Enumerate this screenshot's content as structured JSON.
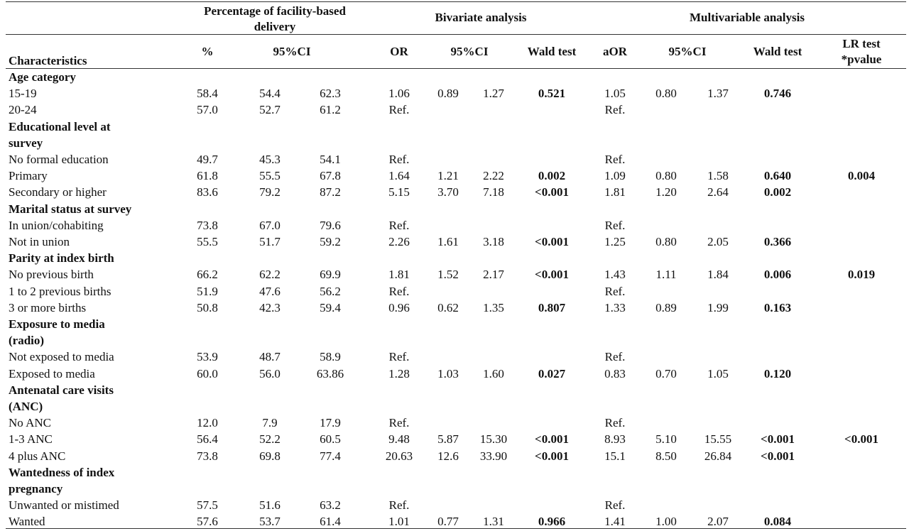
{
  "header": {
    "group1_line1": "Percentage of facility-based",
    "group1_line2": "delivery",
    "group2": "Bivariate analysis",
    "group3": "Multivariable analysis",
    "characteristics": "Characteristics",
    "pct": "%",
    "ci1": "95%CI",
    "or": "OR",
    "ci2": "95%CI",
    "wald1": "Wald test",
    "aor": "aOR",
    "ci3": "95%CI",
    "wald2": "Wald test",
    "lr_line1": "LR test",
    "lr_line2": "*pvalue"
  },
  "rows": [
    {
      "type": "cat",
      "label": [
        "Age category"
      ]
    },
    {
      "type": "data",
      "label": "15-19",
      "pct": "58.4",
      "ci_lo": "54.4",
      "ci_hi": "62.3",
      "or": "1.06",
      "or_lo": "0.89",
      "or_hi": "1.27",
      "wald": "0.521",
      "aor": "1.05",
      "aor_lo": "0.80",
      "aor_hi": "1.37",
      "wald2": "0.746",
      "lr": ""
    },
    {
      "type": "data",
      "label": "20-24",
      "pct": "57.0",
      "ci_lo": "52.7",
      "ci_hi": "61.2",
      "or": "Ref.",
      "or_lo": "",
      "or_hi": "",
      "wald": "",
      "aor": "Ref.",
      "aor_lo": "",
      "aor_hi": "",
      "wald2": "",
      "lr": ""
    },
    {
      "type": "cat",
      "label": [
        "Educational level at",
        "survey"
      ]
    },
    {
      "type": "data",
      "label": "No formal education",
      "pct": "49.7",
      "ci_lo": "45.3",
      "ci_hi": "54.1",
      "or": "Ref.",
      "or_lo": "",
      "or_hi": "",
      "wald": "",
      "aor": "Ref.",
      "aor_lo": "",
      "aor_hi": "",
      "wald2": "",
      "lr": ""
    },
    {
      "type": "data",
      "label": "Primary",
      "pct": "61.8",
      "ci_lo": "55.5",
      "ci_hi": "67.8",
      "or": "1.64",
      "or_lo": "1.21",
      "or_hi": "2.22",
      "wald": "0.002",
      "aor": "1.09",
      "aor_lo": "0.80",
      "aor_hi": "1.58",
      "wald2": "0.640",
      "lr": "0.004"
    },
    {
      "type": "data",
      "label": "Secondary or higher",
      "pct": "83.6",
      "ci_lo": "79.2",
      "ci_hi": "87.2",
      "or": "5.15",
      "or_lo": "3.70",
      "or_hi": "7.18",
      "wald": "<0.001",
      "aor": "1.81",
      "aor_lo": "1.20",
      "aor_hi": "2.64",
      "wald2": "0.002",
      "lr": ""
    },
    {
      "type": "cat",
      "label": [
        "Marital status at survey"
      ]
    },
    {
      "type": "data",
      "label": "In union/cohabiting",
      "pct": "73.8",
      "ci_lo": "67.0",
      "ci_hi": "79.6",
      "or": "Ref.",
      "or_lo": "",
      "or_hi": "",
      "wald": "",
      "aor": "Ref.",
      "aor_lo": "",
      "aor_hi": "",
      "wald2": "",
      "lr": ""
    },
    {
      "type": "data",
      "label": "Not in union",
      "pct": "55.5",
      "ci_lo": "51.7",
      "ci_hi": "59.2",
      "or": "2.26",
      "or_lo": "1.61",
      "or_hi": "3.18",
      "wald": "<0.001",
      "aor": "1.25",
      "aor_lo": "0.80",
      "aor_hi": "2.05",
      "wald2": "0.366",
      "lr": ""
    },
    {
      "type": "cat",
      "label": [
        "Parity at index birth"
      ]
    },
    {
      "type": "data",
      "label": "No previous birth",
      "pct": "66.2",
      "ci_lo": "62.2",
      "ci_hi": "69.9",
      "or": "1.81",
      "or_lo": "1.52",
      "or_hi": "2.17",
      "wald": "<0.001",
      "aor": "1.43",
      "aor_lo": "1.11",
      "aor_hi": "1.84",
      "wald2": "0.006",
      "lr": "0.019"
    },
    {
      "type": "data",
      "label": "1 to 2 previous births",
      "pct": "51.9",
      "ci_lo": "47.6",
      "ci_hi": "56.2",
      "or": "Ref.",
      "or_lo": "",
      "or_hi": "",
      "wald": "",
      "aor": "Ref.",
      "aor_lo": "",
      "aor_hi": "",
      "wald2": "",
      "lr": ""
    },
    {
      "type": "data",
      "label": "3 or more births",
      "pct": "50.8",
      "ci_lo": "42.3",
      "ci_hi": "59.4",
      "or": "0.96",
      "or_lo": "0.62",
      "or_hi": "1.35",
      "wald": "0.807",
      "aor": "1.33",
      "aor_lo": "0.89",
      "aor_hi": "1.99",
      "wald2": "0.163",
      "lr": ""
    },
    {
      "type": "cat",
      "label": [
        "Exposure to media",
        "(radio)"
      ]
    },
    {
      "type": "data",
      "label": "Not exposed to media",
      "pct": "53.9",
      "ci_lo": "48.7",
      "ci_hi": "58.9",
      "or": "Ref.",
      "or_lo": "",
      "or_hi": "",
      "wald": "",
      "aor": "Ref.",
      "aor_lo": "",
      "aor_hi": "",
      "wald2": "",
      "lr": ""
    },
    {
      "type": "data",
      "label": "Exposed to media",
      "pct": "60.0",
      "ci_lo": "56.0",
      "ci_hi": "63.86",
      "or": "1.28",
      "or_lo": "1.03",
      "or_hi": "1.60",
      "wald": "0.027",
      "aor": "0.83",
      "aor_lo": "0.70",
      "aor_hi": "1.05",
      "wald2": "0.120",
      "lr": ""
    },
    {
      "type": "cat",
      "label": [
        "Antenatal care visits",
        "(ANC)"
      ]
    },
    {
      "type": "data",
      "label": "No ANC",
      "pct": "12.0",
      "ci_lo": "7.9",
      "ci_hi": "17.9",
      "or": "Ref.",
      "or_lo": "",
      "or_hi": "",
      "wald": "",
      "aor": "Ref.",
      "aor_lo": "",
      "aor_hi": "",
      "wald2": "",
      "lr": ""
    },
    {
      "type": "data",
      "label": "1-3 ANC",
      "pct": "56.4",
      "ci_lo": "52.2",
      "ci_hi": "60.5",
      "or": "9.48",
      "or_lo": "5.87",
      "or_hi": "15.30",
      "wald": "<0.001",
      "aor": "8.93",
      "aor_lo": "5.10",
      "aor_hi": "15.55",
      "wald2": "<0.001",
      "lr": "<0.001"
    },
    {
      "type": "data",
      "label": "4 plus ANC",
      "pct": "73.8",
      "ci_lo": "69.8",
      "ci_hi": "77.4",
      "or": "20.63",
      "or_lo": "12.6",
      "or_hi": "33.90",
      "wald": "<0.001",
      "aor": "15.1",
      "aor_lo": "8.50",
      "aor_hi": "26.84",
      "wald2": "<0.001",
      "lr": ""
    },
    {
      "type": "cat",
      "label": [
        "Wantedness of index",
        "pregnancy"
      ]
    },
    {
      "type": "data",
      "label": "Unwanted or mistimed",
      "pct": "57.5",
      "ci_lo": "51.6",
      "ci_hi": "63.2",
      "or": "Ref.",
      "or_lo": "",
      "or_hi": "",
      "wald": "",
      "aor": "Ref.",
      "aor_lo": "",
      "aor_hi": "",
      "wald2": "",
      "lr": ""
    },
    {
      "type": "data",
      "label": "Wanted",
      "pct": "57.6",
      "ci_lo": "53.7",
      "ci_hi": "61.4",
      "or": "1.01",
      "or_lo": "0.77",
      "or_hi": "1.31",
      "wald": "0.966",
      "aor": "1.41",
      "aor_lo": "1.00",
      "aor_hi": "2.07",
      "wald2": "0.084",
      "lr": ""
    }
  ]
}
